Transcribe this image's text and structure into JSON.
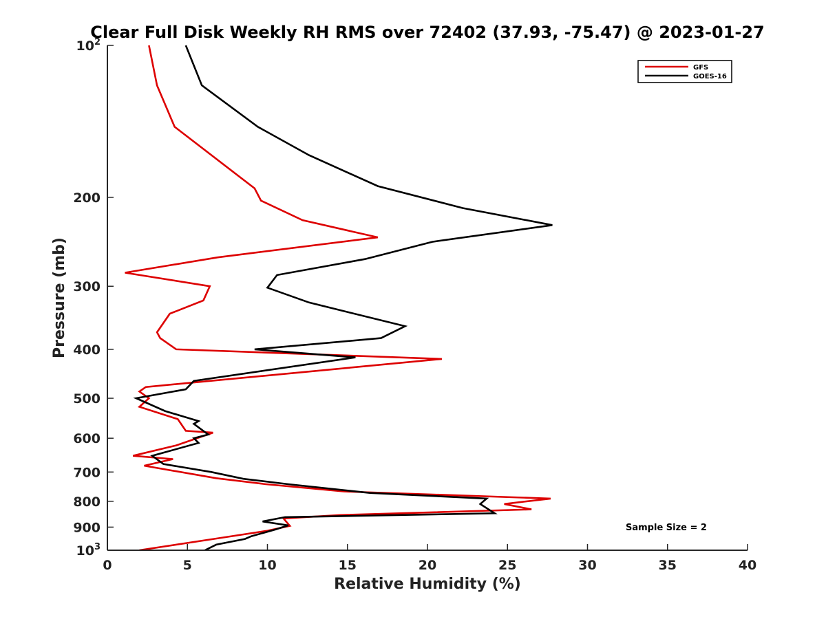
{
  "chart_data": {
    "type": "line",
    "title": "Clear Full Disk Weekly RH RMS over 72402 (37.93, -75.47) @ 2023-01-27",
    "xlabel": "Relative Humidity (%)",
    "ylabel": "Pressure (mb)",
    "xlim": [
      0,
      40
    ],
    "ylim": [
      100,
      1000
    ],
    "yscale": "log",
    "y_reversed": true,
    "x_ticks": [
      0,
      5,
      10,
      15,
      20,
      25,
      30,
      35,
      40
    ],
    "x_tick_labels": [
      "0",
      "5",
      "10",
      "15",
      "20",
      "25",
      "30",
      "35",
      "40"
    ],
    "y_ticks": [
      100,
      200,
      300,
      400,
      500,
      600,
      700,
      800,
      900,
      1000
    ],
    "y_tick_labels": [
      {
        "base": "10",
        "sup": "2"
      },
      {
        "base": "200",
        "sup": ""
      },
      {
        "base": "300",
        "sup": ""
      },
      {
        "base": "400",
        "sup": ""
      },
      {
        "base": "500",
        "sup": ""
      },
      {
        "base": "600",
        "sup": ""
      },
      {
        "base": "700",
        "sup": ""
      },
      {
        "base": "800",
        "sup": ""
      },
      {
        "base": "900",
        "sup": ""
      },
      {
        "base": "10",
        "sup": "3"
      }
    ],
    "legend_position": "top-right",
    "annotation": "Sample Size = 2",
    "series": [
      {
        "name": "GFS",
        "color": "#dd0000",
        "points": [
          [
            2.6,
            100
          ],
          [
            3.1,
            120
          ],
          [
            4.2,
            145
          ],
          [
            9.2,
            192
          ],
          [
            9.6,
            203
          ],
          [
            12.2,
            222
          ],
          [
            16.9,
            240
          ],
          [
            6.9,
            263
          ],
          [
            1.1,
            282
          ],
          [
            6.4,
            300
          ],
          [
            6.0,
            320
          ],
          [
            3.9,
            340
          ],
          [
            3.1,
            370
          ],
          [
            3.3,
            380
          ],
          [
            4.3,
            400
          ],
          [
            20.9,
            418
          ],
          [
            2.4,
            475
          ],
          [
            2.0,
            485
          ],
          [
            2.6,
            500
          ],
          [
            2.0,
            520
          ],
          [
            4.4,
            550
          ],
          [
            4.9,
            580
          ],
          [
            6.6,
            585
          ],
          [
            4.3,
            620
          ],
          [
            1.6,
            650
          ],
          [
            4.1,
            660
          ],
          [
            2.3,
            680
          ],
          [
            6.8,
            720
          ],
          [
            9.9,
            740
          ],
          [
            14.8,
            765
          ],
          [
            27.7,
            790
          ],
          [
            24.8,
            810
          ],
          [
            26.5,
            830
          ],
          [
            14.5,
            852
          ],
          [
            11.0,
            865
          ],
          [
            11.4,
            895
          ],
          [
            10.0,
            915
          ],
          [
            7.1,
            945
          ],
          [
            2.0,
            1000
          ]
        ]
      },
      {
        "name": "GOES-16",
        "color": "#000000",
        "points": [
          [
            4.9,
            100
          ],
          [
            5.9,
            120
          ],
          [
            9.4,
            145
          ],
          [
            12.6,
            165
          ],
          [
            16.9,
            190
          ],
          [
            22.2,
            210
          ],
          [
            27.8,
            227
          ],
          [
            20.3,
            245
          ],
          [
            16.1,
            265
          ],
          [
            10.6,
            285
          ],
          [
            10.0,
            302
          ],
          [
            12.6,
            323
          ],
          [
            18.6,
            360
          ],
          [
            17.1,
            380
          ],
          [
            9.2,
            400
          ],
          [
            15.5,
            415
          ],
          [
            5.4,
            462
          ],
          [
            4.9,
            480
          ],
          [
            1.8,
            500
          ],
          [
            3.6,
            530
          ],
          [
            5.7,
            555
          ],
          [
            5.4,
            562
          ],
          [
            6.3,
            590
          ],
          [
            5.4,
            600
          ],
          [
            5.7,
            613
          ],
          [
            2.8,
            650
          ],
          [
            3.5,
            675
          ],
          [
            6.5,
            700
          ],
          [
            8.5,
            722
          ],
          [
            11.3,
            740
          ],
          [
            16.4,
            770
          ],
          [
            23.7,
            790
          ],
          [
            23.3,
            810
          ],
          [
            24.2,
            845
          ],
          [
            11.1,
            860
          ],
          [
            9.7,
            877
          ],
          [
            11.3,
            893
          ],
          [
            10.5,
            910
          ],
          [
            9.0,
            938
          ],
          [
            8.6,
            950
          ],
          [
            6.8,
            975
          ],
          [
            6.1,
            1000
          ]
        ]
      }
    ]
  }
}
